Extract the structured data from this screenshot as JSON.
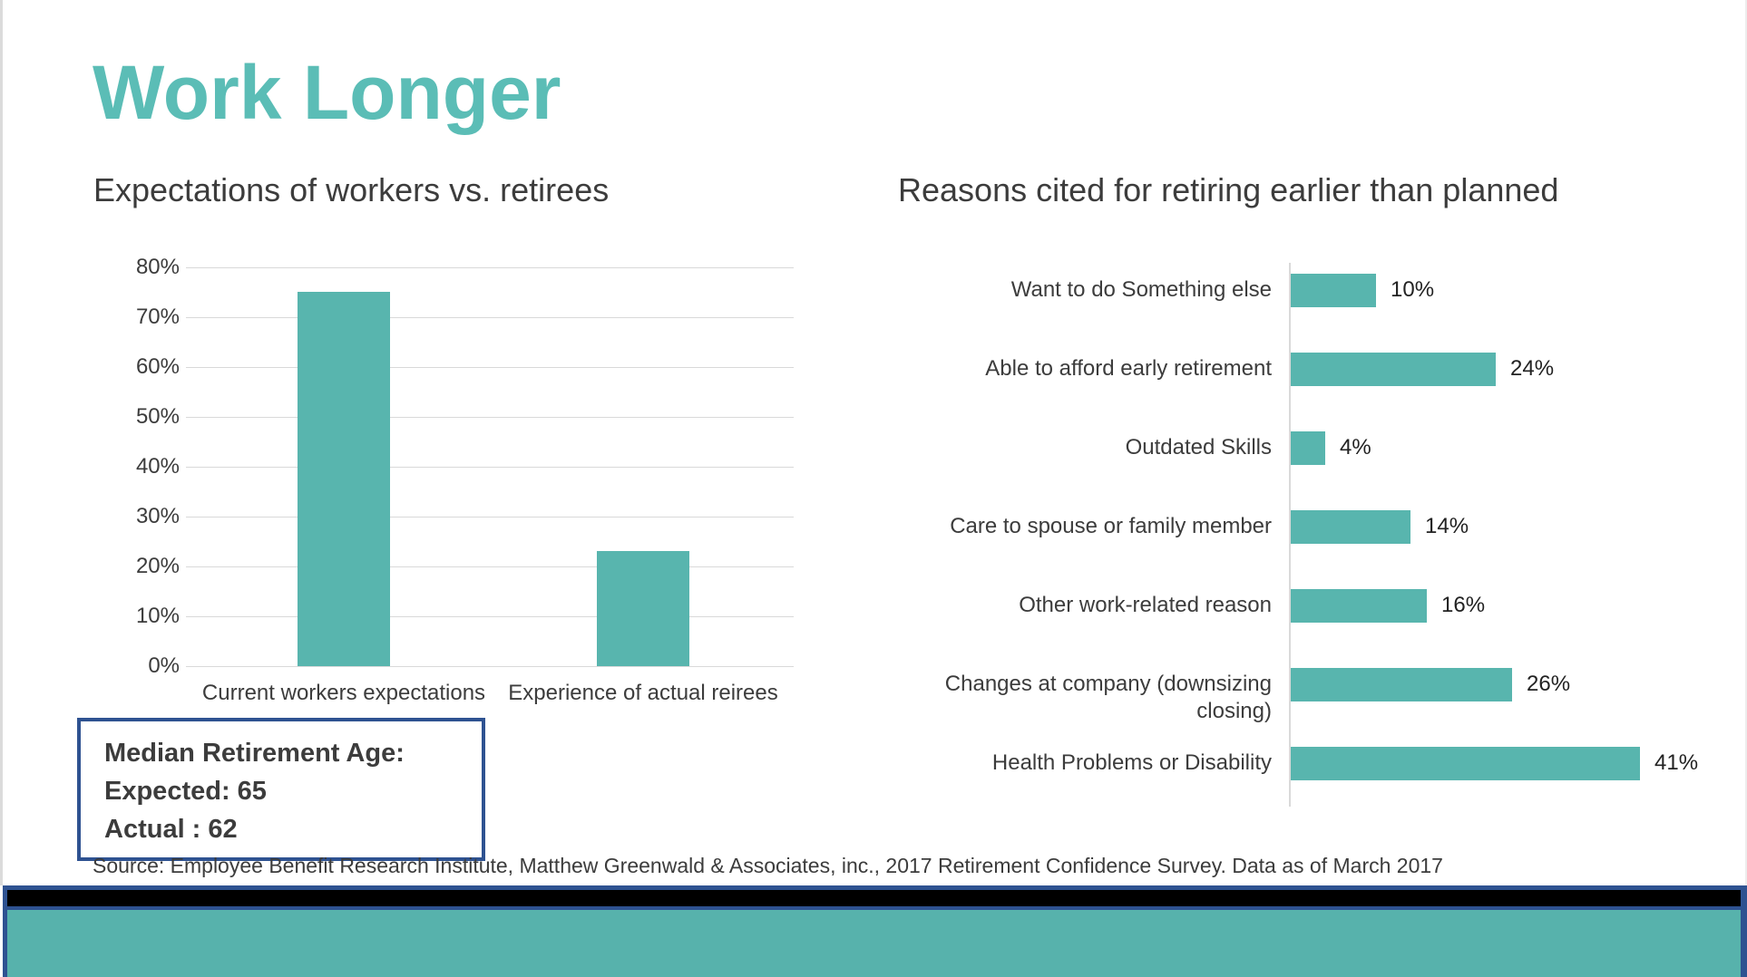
{
  "slide": {
    "title": "Work Longer",
    "source": "Source: Employee Benefit Research Institute, Matthew Greenwald & Associates, inc., 2017 Retirement Confidence Survey. Data as of March 2017"
  },
  "colors": {
    "title_teal": "#5BBDB6",
    "bar_teal": "#58B5AE",
    "footer_teal": "#57B2AC",
    "navy": "#2E5291",
    "text_dark": "#3C3C3C",
    "value_text": "#222222",
    "grid": "#D9D9D9",
    "edge_left": "#DBDBDB",
    "edge_right": "#EDEDED"
  },
  "median_box": {
    "line1": "Median Retirement Age:",
    "line2": "Expected: 65",
    "line3": "Actual : 62"
  },
  "chart_data": [
    {
      "type": "bar",
      "orientation": "vertical",
      "title": "Expectations of workers vs. retirees",
      "categories": [
        "Current workers expectations",
        "Experience of actual reirees"
      ],
      "values": [
        75,
        23
      ],
      "xlabel": "",
      "ylabel": "",
      "ylim": [
        0,
        80
      ],
      "ytick_step": 10,
      "yticks": [
        "0%",
        "10%",
        "20%",
        "30%",
        "40%",
        "50%",
        "60%",
        "70%",
        "80%"
      ],
      "grid": true,
      "legend": false
    },
    {
      "type": "bar",
      "orientation": "horizontal",
      "title": "Reasons cited for retiring earlier than planned",
      "categories": [
        "Want to do Something else",
        "Able to afford early retirement",
        "Outdated Skills",
        "Care to spouse or family member",
        "Other work-related reason",
        "Changes at company (downsizing closing)",
        "Health Problems or Disability"
      ],
      "values": [
        10,
        24,
        4,
        14,
        16,
        26,
        41
      ],
      "value_labels": [
        "10%",
        "24%",
        "4%",
        "14%",
        "16%",
        "26%",
        "41%"
      ],
      "xlabel": "",
      "ylabel": "",
      "xlim": [
        0,
        45
      ],
      "grid": false,
      "legend": false
    }
  ]
}
